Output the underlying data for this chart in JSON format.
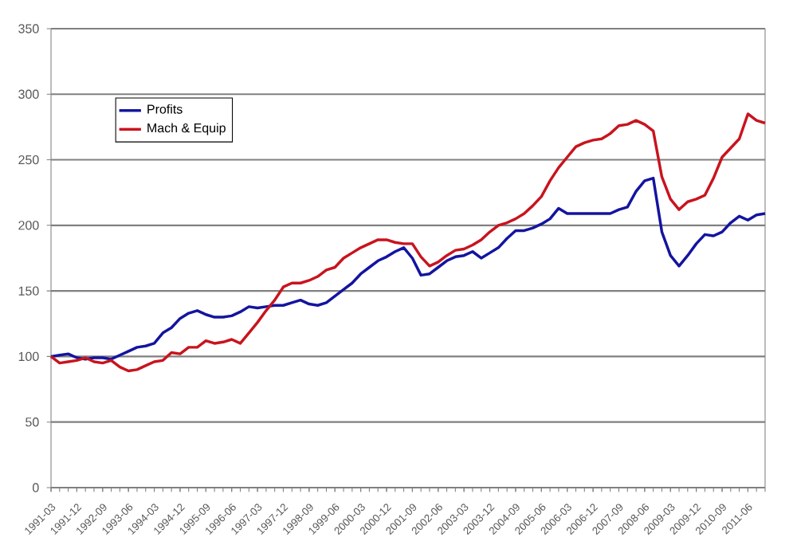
{
  "chart_data": {
    "type": "line",
    "categories": [
      "1991-03",
      null,
      null,
      "1991-12",
      null,
      null,
      "1992-09",
      null,
      null,
      "1993-06",
      null,
      null,
      "1994-03",
      null,
      null,
      "1994-12",
      null,
      null,
      "1995-09",
      null,
      null,
      "1996-06",
      null,
      null,
      "1997-03",
      null,
      null,
      "1997-12",
      null,
      null,
      "1998-09",
      null,
      null,
      "1999-06",
      null,
      null,
      "2000-03",
      null,
      null,
      "2000-12",
      null,
      null,
      "2001-09",
      null,
      null,
      "2002-06",
      null,
      null,
      "2003-03",
      null,
      null,
      "2003-12",
      null,
      null,
      "2004-09",
      null,
      null,
      "2005-06",
      null,
      null,
      "2006-03",
      null,
      null,
      "2006-12",
      null,
      null,
      "2007-09",
      null,
      null,
      "2008-06",
      null,
      null,
      "2009-03",
      null,
      null,
      "2009-12",
      null,
      null,
      "2010-09",
      null,
      null,
      "2011-06",
      null,
      null
    ],
    "series": [
      {
        "name": "Profits",
        "color": "#1414a0",
        "values": [
          100,
          101,
          102,
          99,
          98,
          99,
          99,
          98,
          101,
          104,
          107,
          108,
          110,
          118,
          122,
          129,
          133,
          135,
          132,
          130,
          130,
          131,
          134,
          138,
          137,
          138,
          139,
          139,
          141,
          143,
          140,
          139,
          141,
          146,
          151,
          156,
          163,
          168,
          173,
          176,
          180,
          183,
          175,
          162,
          163,
          168,
          173,
          176,
          177,
          180,
          175,
          179,
          183,
          190,
          196,
          196,
          198,
          201,
          205,
          213,
          209,
          209,
          209,
          209,
          209,
          209,
          212,
          214,
          226,
          234,
          236,
          195,
          177,
          169,
          177,
          186,
          193,
          192,
          195,
          202,
          207,
          204,
          208,
          209
        ]
      },
      {
        "name": "Mach & Equip",
        "color": "#c8141e",
        "values": [
          100,
          95,
          96,
          97,
          99,
          96,
          95,
          97,
          92,
          89,
          90,
          93,
          96,
          97,
          103,
          102,
          107,
          107,
          112,
          110,
          111,
          113,
          110,
          118,
          126,
          135,
          143,
          153,
          156,
          156,
          158,
          161,
          166,
          168,
          175,
          179,
          183,
          186,
          189,
          189,
          187,
          186,
          186,
          176,
          169,
          172,
          177,
          181,
          182,
          185,
          189,
          195,
          200,
          202,
          205,
          209,
          215,
          222,
          234,
          244,
          252,
          260,
          263,
          265,
          266,
          270,
          276,
          277,
          280,
          277,
          272,
          237,
          220,
          212,
          218,
          220,
          223,
          236,
          252,
          259,
          266,
          285,
          280,
          278
        ]
      }
    ],
    "ylim": [
      0,
      350
    ],
    "yticks": [
      0,
      50,
      100,
      150,
      200,
      250,
      300,
      350
    ],
    "grid": "y",
    "legend": "top left",
    "marker": "none",
    "line_style": "solid"
  }
}
